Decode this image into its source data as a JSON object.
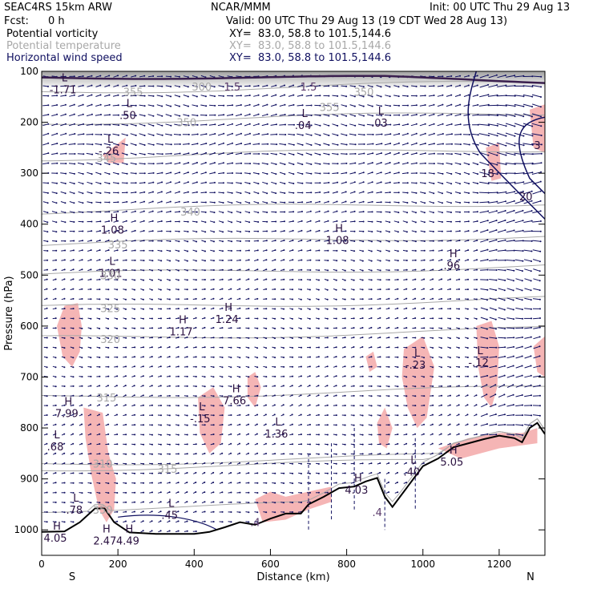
{
  "header": {
    "model": "SEAC4RS 15km ARW",
    "center": "NCAR/MMM",
    "init": "Init: 00 UTC Thu 29 Aug 13",
    "fcst_label": "Fcst:",
    "fcst_value": "0 h",
    "valid": "Valid: 00 UTC Thu 29 Aug 13 (19 CDT Wed 28 Aug 13)",
    "fields": [
      {
        "name": "Potential vorticity",
        "xy": "XY=  83.0, 58.8 to 101.5,144.6",
        "color": "#000000"
      },
      {
        "name": "Potential temperature",
        "xy": "XY=  83.0, 58.8 to 101.5,144.6",
        "color": "#a8a8a8"
      },
      {
        "name": "Horizontal wind speed",
        "xy": "XY=  83.0, 58.8 to 101.5,144.6",
        "color": "#101060"
      }
    ]
  },
  "chart_data": {
    "type": "cross-section",
    "ylabel": "Pressure (hPa)",
    "xlabel": "Distance (km)",
    "xlim": [
      0,
      1320
    ],
    "ylim": [
      1050,
      100
    ],
    "x_ticks": [
      0,
      200,
      400,
      600,
      800,
      1000,
      1200
    ],
    "y_ticks": [
      100,
      200,
      300,
      400,
      500,
      600,
      700,
      800,
      900,
      1000
    ],
    "x_end_labels": {
      "left": "S",
      "right": "N"
    },
    "theta_contours": [
      {
        "value": "355",
        "p": 140
      },
      {
        "value": "350",
        "p": 200
      },
      {
        "value": "345",
        "p": 270
      },
      {
        "value": "340",
        "p": 375
      },
      {
        "value": "335",
        "p": 440
      },
      {
        "value": "330",
        "p": 500
      },
      {
        "value": "325",
        "p": 565
      },
      {
        "value": "320",
        "p": 625
      },
      {
        "value": "315",
        "p": 740
      },
      {
        "value": "310",
        "p": 870
      },
      {
        "value": "315",
        "p": 880
      },
      {
        "value": "350",
        "p": 960
      }
    ],
    "pv_labels": [
      {
        "t": "L",
        "v": "-1.71",
        "x": 60,
        "p": 120
      },
      {
        "t": "L",
        "v": ".50",
        "x": 230,
        "p": 170
      },
      {
        "t": "L",
        "v": "-.26",
        "x": 180,
        "p": 240
      },
      {
        "t": "L",
        "v": ".04",
        "x": 690,
        "p": 190
      },
      {
        "t": "L",
        "v": ".03",
        "x": 890,
        "p": 185
      },
      {
        "t": "H",
        "v": "1.08",
        "x": 190,
        "p": 395
      },
      {
        "t": "H",
        "v": "1.08",
        "x": 780,
        "p": 415
      },
      {
        "t": "L",
        "v": "1.01",
        "x": 185,
        "p": 480
      },
      {
        "t": "H",
        "v": ".96",
        "x": 1080,
        "p": 465
      },
      {
        "t": "H",
        "v": "1.17",
        "x": 370,
        "p": 595
      },
      {
        "t": "H",
        "v": "1.24",
        "x": 490,
        "p": 570
      },
      {
        "t": "H",
        "v": "7.66",
        "x": 510,
        "p": 730
      },
      {
        "t": "L",
        "v": "-.15",
        "x": 420,
        "p": 765
      },
      {
        "t": "L",
        "v": "1.36",
        "x": 620,
        "p": 795
      },
      {
        "t": "L",
        "v": "-.23",
        "x": 985,
        "p": 660
      },
      {
        "t": "L",
        "v": "-.12",
        "x": 1150,
        "p": 655
      },
      {
        "t": "H",
        "v": "7.99",
        "x": 70,
        "p": 755
      },
      {
        "t": "L",
        "v": ".68",
        "x": 40,
        "p": 820
      },
      {
        "t": "L",
        "v": ".40",
        "x": 975,
        "p": 870
      },
      {
        "t": "H",
        "v": "4.03",
        "x": 830,
        "p": 905
      },
      {
        "t": "H",
        "v": "5.05",
        "x": 1080,
        "p": 850
      },
      {
        "t": "L",
        "v": ".78",
        "x": 90,
        "p": 945
      },
      {
        "t": "L",
        "v": ".45",
        "x": 340,
        "p": 955
      },
      {
        "t": "H",
        "v": "4.05",
        "x": 40,
        "p": 1000
      },
      {
        "t": "H",
        "v": "2.47",
        "x": 170,
        "p": 1005
      },
      {
        "t": "H",
        "v": "4.49",
        "x": 230,
        "p": 1005
      }
    ],
    "wind_contours": [
      {
        "value": "18",
        "x": 1170,
        "p": 300
      },
      {
        "value": "20",
        "x": 1270,
        "p": 345
      },
      {
        "value": "3",
        "x": 1300,
        "p": 245
      }
    ],
    "pv_line_labels": [
      {
        "value": "1.5",
        "x": 500,
        "p": 130
      },
      {
        "value": "1.5",
        "x": 700,
        "p": 130
      },
      {
        "value": ".4",
        "x": 880,
        "p": 965
      },
      {
        "value": ".4",
        "x": 560,
        "p": 985
      }
    ],
    "theta_line_labels": [
      {
        "value": "300",
        "x": 420,
        "p": 130
      },
      {
        "value": "355",
        "x": 755,
        "p": 170
      },
      {
        "value": "350",
        "x": 845,
        "p": 140
      }
    ],
    "colors": {
      "pv_positive": "#3a1f4e",
      "pv_fill": "#f5b5b5",
      "theta": "#a8a8a8",
      "wind": "#101060",
      "terrain": "#000000"
    }
  }
}
